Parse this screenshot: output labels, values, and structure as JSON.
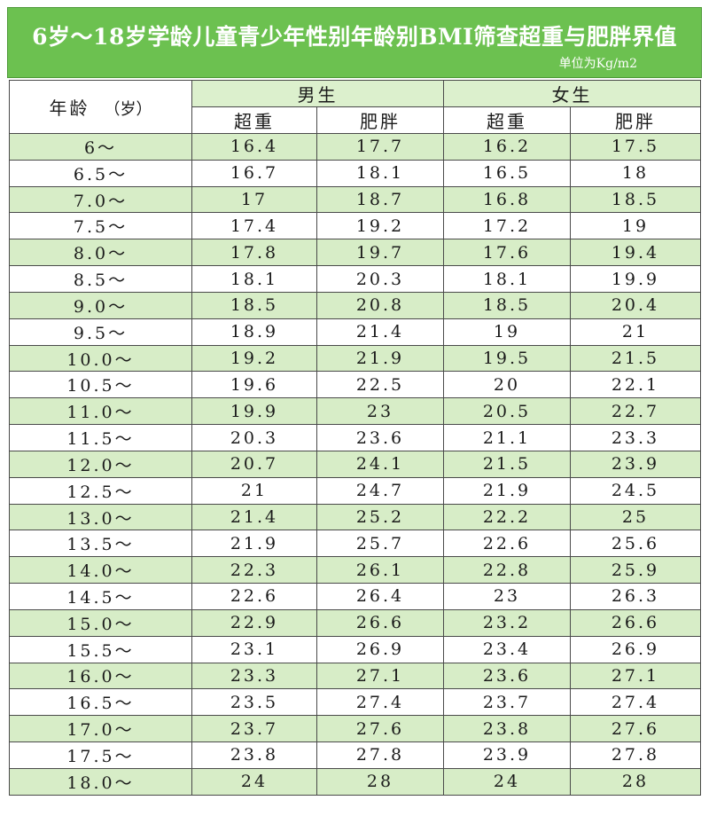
{
  "title": "6岁～18岁学龄儿童青少年性别年龄别BMI筛查超重与肥胖界值",
  "unit": "单位为Kg/m2",
  "header": {
    "age_label": "年龄",
    "age_unit": "（岁）",
    "male": "男生",
    "female": "女生",
    "overweight": "超重",
    "obese": "肥胖"
  },
  "chart_data": {
    "type": "table",
    "title": "6岁～18岁学龄儿童青少年性别年龄别BMI筛查超重与肥胖界值",
    "unit": "单位为Kg/m2",
    "columns": [
      "年龄（岁）",
      "男生 超重",
      "男生 肥胖",
      "女生 超重",
      "女生 肥胖"
    ],
    "rows": [
      [
        "6～",
        "16.4",
        "17.7",
        "16.2",
        "17.5"
      ],
      [
        "6.5～",
        "16.7",
        "18.1",
        "16.5",
        "18"
      ],
      [
        "7.0～",
        "17",
        "18.7",
        "16.8",
        "18.5"
      ],
      [
        "7.5～",
        "17.4",
        "19.2",
        "17.2",
        "19"
      ],
      [
        "8.0～",
        "17.8",
        "19.7",
        "17.6",
        "19.4"
      ],
      [
        "8.5～",
        "18.1",
        "20.3",
        "18.1",
        "19.9"
      ],
      [
        "9.0～",
        "18.5",
        "20.8",
        "18.5",
        "20.4"
      ],
      [
        "9.5～",
        "18.9",
        "21.4",
        "19",
        "21"
      ],
      [
        "10.0～",
        "19.2",
        "21.9",
        "19.5",
        "21.5"
      ],
      [
        "10.5～",
        "19.6",
        "22.5",
        "20",
        "22.1"
      ],
      [
        "11.0～",
        "19.9",
        "23",
        "20.5",
        "22.7"
      ],
      [
        "11.5～",
        "20.3",
        "23.6",
        "21.1",
        "23.3"
      ],
      [
        "12.0～",
        "20.7",
        "24.1",
        "21.5",
        "23.9"
      ],
      [
        "12.5～",
        "21",
        "24.7",
        "21.9",
        "24.5"
      ],
      [
        "13.0～",
        "21.4",
        "25.2",
        "22.2",
        "25"
      ],
      [
        "13.5～",
        "21.9",
        "25.7",
        "22.6",
        "25.6"
      ],
      [
        "14.0～",
        "22.3",
        "26.1",
        "22.8",
        "25.9"
      ],
      [
        "14.5～",
        "22.6",
        "26.4",
        "23",
        "26.3"
      ],
      [
        "15.0～",
        "22.9",
        "26.6",
        "23.2",
        "26.6"
      ],
      [
        "15.5～",
        "23.1",
        "26.9",
        "23.4",
        "26.9"
      ],
      [
        "16.0～",
        "23.3",
        "27.1",
        "23.6",
        "27.1"
      ],
      [
        "16.5～",
        "23.5",
        "27.4",
        "23.7",
        "27.4"
      ],
      [
        "17.0～",
        "23.7",
        "27.6",
        "23.8",
        "27.6"
      ],
      [
        "17.5～",
        "23.8",
        "27.8",
        "23.9",
        "27.8"
      ],
      [
        "18.0～",
        "24",
        "28",
        "24",
        "28"
      ]
    ]
  },
  "colors": {
    "banner": "#6cc150",
    "stripe": "#d7edc7",
    "border": "#4a4a4a"
  }
}
